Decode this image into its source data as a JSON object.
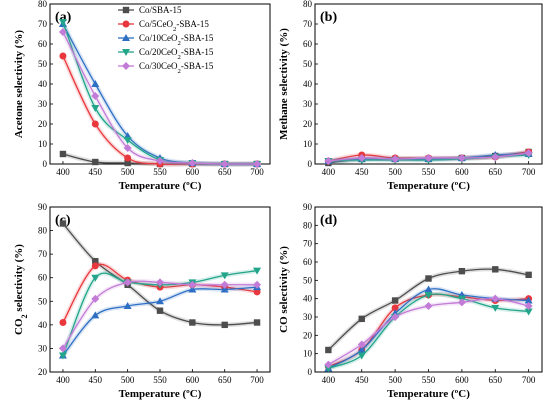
{
  "figure": {
    "series_styles": [
      {
        "name": "Co/SBA-15",
        "color": "#4d4d4d",
        "marker": "square"
      },
      {
        "name": "Co/5CeO2-SBA-15",
        "color": "#e8383d",
        "marker": "circle"
      },
      {
        "name": "Co/10CeO2-SBA-15",
        "color": "#2e6fc4",
        "marker": "triangle-up"
      },
      {
        "name": "Co/20CeO2-SBA-15",
        "color": "#22a58a",
        "marker": "triangle-down"
      },
      {
        "name": "Co/30CeO2-SBA-15",
        "color": "#c27bd6",
        "marker": "diamond"
      }
    ]
  },
  "chart_data": [
    {
      "type": "line",
      "panel_label": "(a)",
      "xlabel": "Temperature (ºC)",
      "ylabel": "Acetone selectivity (%)",
      "x": [
        400,
        450,
        500,
        550,
        600,
        650,
        700
      ],
      "xlim": [
        380,
        720
      ],
      "ylim": [
        0,
        80
      ],
      "yticks": [
        0,
        10,
        20,
        30,
        40,
        50,
        60,
        70,
        80
      ],
      "legend": "top-right",
      "series": [
        {
          "name": "Co/SBA-15",
          "values": [
            5,
            1,
            0.5,
            0,
            0,
            0,
            0
          ]
        },
        {
          "name": "Co/5CeO2-SBA-15",
          "values": [
            54,
            20,
            3,
            0,
            0,
            0,
            0
          ]
        },
        {
          "name": "Co/10CeO2-SBA-15",
          "values": [
            70,
            40,
            14,
            3,
            0.5,
            0,
            0
          ]
        },
        {
          "name": "Co/20CeO2-SBA-15",
          "values": [
            71,
            28,
            12,
            2,
            0.5,
            0,
            0
          ]
        },
        {
          "name": "Co/30CeO2-SBA-15",
          "values": [
            66,
            34,
            8,
            1.5,
            0.5,
            0,
            0
          ]
        }
      ]
    },
    {
      "type": "line",
      "panel_label": "(b)",
      "xlabel": "Temperature (ºC)",
      "ylabel": "Methane selectivity (%)",
      "x": [
        400,
        450,
        500,
        550,
        600,
        650,
        700
      ],
      "xlim": [
        380,
        720
      ],
      "ylim": [
        0,
        80
      ],
      "yticks": [
        0,
        10,
        20,
        30,
        40,
        50,
        60,
        70,
        80
      ],
      "legend": "none",
      "series": [
        {
          "name": "Co/SBA-15",
          "values": [
            0.5,
            2.5,
            2.5,
            2.5,
            3,
            4,
            6
          ]
        },
        {
          "name": "Co/5CeO2-SBA-15",
          "values": [
            1.5,
            4.5,
            3,
            3,
            3,
            3.5,
            6
          ]
        },
        {
          "name": "Co/10CeO2-SBA-15",
          "values": [
            1.5,
            2.5,
            2.5,
            2.5,
            3,
            4.5,
            5
          ]
        },
        {
          "name": "Co/20CeO2-SBA-15",
          "values": [
            1.5,
            2,
            2,
            2,
            2.5,
            3.5,
            4.5
          ]
        },
        {
          "name": "Co/30CeO2-SBA-15",
          "values": [
            1.5,
            3,
            2.5,
            3,
            3,
            3.5,
            5.5
          ]
        }
      ]
    },
    {
      "type": "line",
      "panel_label": "(c)",
      "xlabel": "Temperature (ºC)",
      "ylabel": "CO2 selectivity (%)",
      "x": [
        400,
        450,
        500,
        550,
        600,
        650,
        700
      ],
      "xlim": [
        380,
        720
      ],
      "ylim": [
        20,
        90
      ],
      "yticks": [
        20,
        30,
        40,
        50,
        60,
        70,
        80,
        90
      ],
      "legend": "none",
      "series": [
        {
          "name": "Co/SBA-15",
          "values": [
            83,
            67,
            57,
            46,
            41,
            40,
            41
          ]
        },
        {
          "name": "Co/5CeO2-SBA-15",
          "values": [
            41,
            65,
            59,
            56,
            57,
            56,
            54
          ]
        },
        {
          "name": "Co/10CeO2-SBA-15",
          "values": [
            27,
            44,
            48,
            50,
            55,
            55,
            56
          ]
        },
        {
          "name": "Co/20CeO2-SBA-15",
          "values": [
            27,
            60,
            58,
            57,
            58,
            61,
            63
          ]
        },
        {
          "name": "Co/30CeO2-SBA-15",
          "values": [
            30,
            51,
            58,
            58,
            57,
            57,
            57
          ]
        }
      ]
    },
    {
      "type": "line",
      "panel_label": "(d)",
      "xlabel": "Temperature (ºC)",
      "ylabel": "CO selectivity (%)",
      "x": [
        400,
        450,
        500,
        550,
        600,
        650,
        700
      ],
      "xlim": [
        380,
        720
      ],
      "ylim": [
        0,
        90
      ],
      "yticks": [
        0,
        10,
        20,
        30,
        40,
        50,
        60,
        70,
        80,
        90
      ],
      "legend": "none",
      "series": [
        {
          "name": "Co/SBA-15",
          "values": [
            12,
            29,
            39,
            51,
            55,
            56,
            53
          ]
        },
        {
          "name": "Co/5CeO2-SBA-15",
          "values": [
            3,
            12,
            35,
            42,
            41,
            39,
            40
          ]
        },
        {
          "name": "Co/10CeO2-SBA-15",
          "values": [
            2,
            12,
            32,
            45,
            42,
            40,
            39
          ]
        },
        {
          "name": "Co/20CeO2-SBA-15",
          "values": [
            2,
            9,
            30,
            42,
            40,
            35,
            33
          ]
        },
        {
          "name": "Co/30CeO2-SBA-15",
          "values": [
            4,
            15,
            30,
            36,
            38,
            40,
            36
          ]
        }
      ]
    }
  ]
}
